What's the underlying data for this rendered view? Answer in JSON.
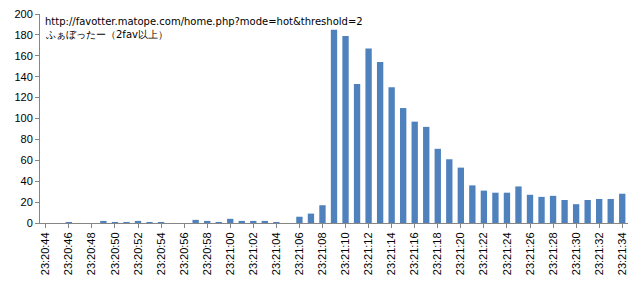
{
  "chart_data": {
    "type": "bar",
    "annotations": [
      "http://favotter.matope.com/home.php?mode=hot&threshold=2",
      "ふぁぼったー（2fav以上）"
    ],
    "categories": [
      "23:20:44",
      null,
      "23:20:46",
      null,
      "23:20:48",
      null,
      "23:20:50",
      null,
      "23:20:52",
      null,
      "23:20:54",
      null,
      "23:20:56",
      null,
      "23:20:58",
      null,
      "23:21:00",
      null,
      "23:21:02",
      null,
      "23:21:04",
      null,
      "23:21:06",
      null,
      "23:21:08",
      null,
      "23:21:10",
      null,
      "23:21:12",
      null,
      "23:21:14",
      null,
      "23:21:16",
      null,
      "23:21:18",
      null,
      "23:21:20",
      null,
      "23:21:22",
      null,
      "23:21:24",
      null,
      "23:21:26",
      null,
      "23:21:28",
      null,
      "23:21:30",
      null,
      "23:21:32",
      null,
      "23:21:34"
    ],
    "values": [
      0,
      0,
      1,
      0,
      0,
      2,
      1,
      1,
      2,
      1,
      1,
      0,
      0,
      3,
      2,
      1,
      4,
      2,
      2,
      2,
      1,
      0,
      6,
      9,
      17,
      185,
      179,
      133,
      167,
      154,
      130,
      110,
      97,
      92,
      71,
      61,
      53,
      36,
      31,
      29,
      29,
      35,
      27,
      25,
      26,
      22,
      18,
      22,
      23,
      23,
      28
    ],
    "color": "#4f81bd",
    "ylim": [
      0,
      200
    ],
    "yticks": [
      0,
      20,
      40,
      60,
      80,
      100,
      120,
      140,
      160,
      180,
      200
    ],
    "grid": false
  }
}
